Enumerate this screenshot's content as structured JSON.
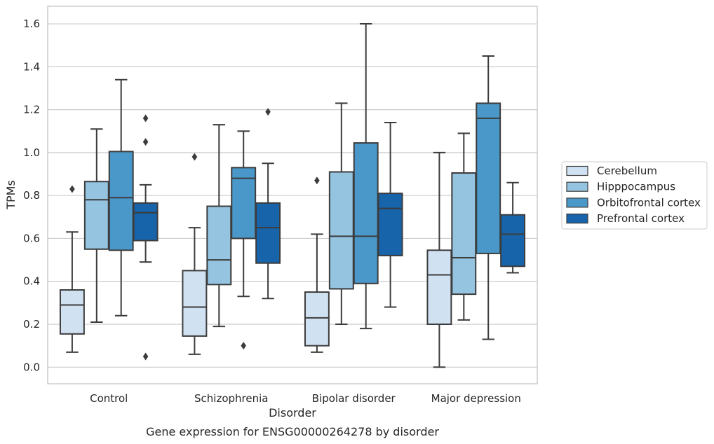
{
  "chart_data": {
    "type": "box",
    "title": "Gene expression for ENSG00000264278 by disorder",
    "xlabel": "Disorder",
    "ylabel": "TPMs",
    "ylim": [
      -0.08,
      1.68
    ],
    "yticks": [
      "0.0",
      "0.2",
      "0.4",
      "0.6",
      "0.8",
      "1.0",
      "1.2",
      "1.4",
      "1.6"
    ],
    "grid": true,
    "legend_position": "right",
    "categories": [
      "Control",
      "Schizophrenia",
      "Bipolar disorder",
      "Major depression"
    ],
    "series": [
      {
        "name": "Cerebellum",
        "color": "#d0e1f2",
        "boxes": [
          {
            "whislo": 0.07,
            "q1": 0.155,
            "med": 0.29,
            "q3": 0.36,
            "whishi": 0.63,
            "fliers": [
              0.83
            ]
          },
          {
            "whislo": 0.06,
            "q1": 0.145,
            "med": 0.28,
            "q3": 0.45,
            "whishi": 0.65,
            "fliers": [
              0.98
            ]
          },
          {
            "whislo": 0.07,
            "q1": 0.1,
            "med": 0.23,
            "q3": 0.35,
            "whishi": 0.62,
            "fliers": [
              0.87
            ]
          },
          {
            "whislo": 0.0,
            "q1": 0.2,
            "med": 0.43,
            "q3": 0.545,
            "whishi": 1.0,
            "fliers": []
          }
        ]
      },
      {
        "name": "Hipppocampus",
        "color": "#94c4df",
        "boxes": [
          {
            "whislo": 0.21,
            "q1": 0.55,
            "med": 0.78,
            "q3": 0.865,
            "whishi": 1.11,
            "fliers": []
          },
          {
            "whislo": 0.19,
            "q1": 0.385,
            "med": 0.5,
            "q3": 0.75,
            "whishi": 1.13,
            "fliers": []
          },
          {
            "whislo": 0.2,
            "q1": 0.365,
            "med": 0.61,
            "q3": 0.91,
            "whishi": 1.23,
            "fliers": []
          },
          {
            "whislo": 0.22,
            "q1": 0.34,
            "med": 0.51,
            "q3": 0.905,
            "whishi": 1.09,
            "fliers": []
          }
        ]
      },
      {
        "name": "Orbitofrontal cortex",
        "color": "#4a98c9",
        "boxes": [
          {
            "whislo": 0.24,
            "q1": 0.545,
            "med": 0.79,
            "q3": 1.005,
            "whishi": 1.34,
            "fliers": []
          },
          {
            "whislo": 0.33,
            "q1": 0.6,
            "med": 0.88,
            "q3": 0.93,
            "whishi": 1.1,
            "fliers": [
              0.1
            ]
          },
          {
            "whislo": 0.18,
            "q1": 0.39,
            "med": 0.61,
            "q3": 1.045,
            "whishi": 1.6,
            "fliers": []
          },
          {
            "whislo": 0.13,
            "q1": 0.53,
            "med": 1.16,
            "q3": 1.23,
            "whishi": 1.45,
            "fliers": []
          }
        ]
      },
      {
        "name": "Prefrontal cortex",
        "color": "#1764ab",
        "boxes": [
          {
            "whislo": 0.49,
            "q1": 0.59,
            "med": 0.72,
            "q3": 0.765,
            "whishi": 0.85,
            "fliers": [
              1.16,
              1.05,
              0.05
            ]
          },
          {
            "whislo": 0.32,
            "q1": 0.485,
            "med": 0.65,
            "q3": 0.765,
            "whishi": 0.95,
            "fliers": [
              1.19
            ]
          },
          {
            "whislo": 0.28,
            "q1": 0.52,
            "med": 0.74,
            "q3": 0.81,
            "whishi": 1.14,
            "fliers": []
          },
          {
            "whislo": 0.44,
            "q1": 0.47,
            "med": 0.62,
            "q3": 0.71,
            "whishi": 0.86,
            "fliers": []
          }
        ]
      }
    ]
  }
}
